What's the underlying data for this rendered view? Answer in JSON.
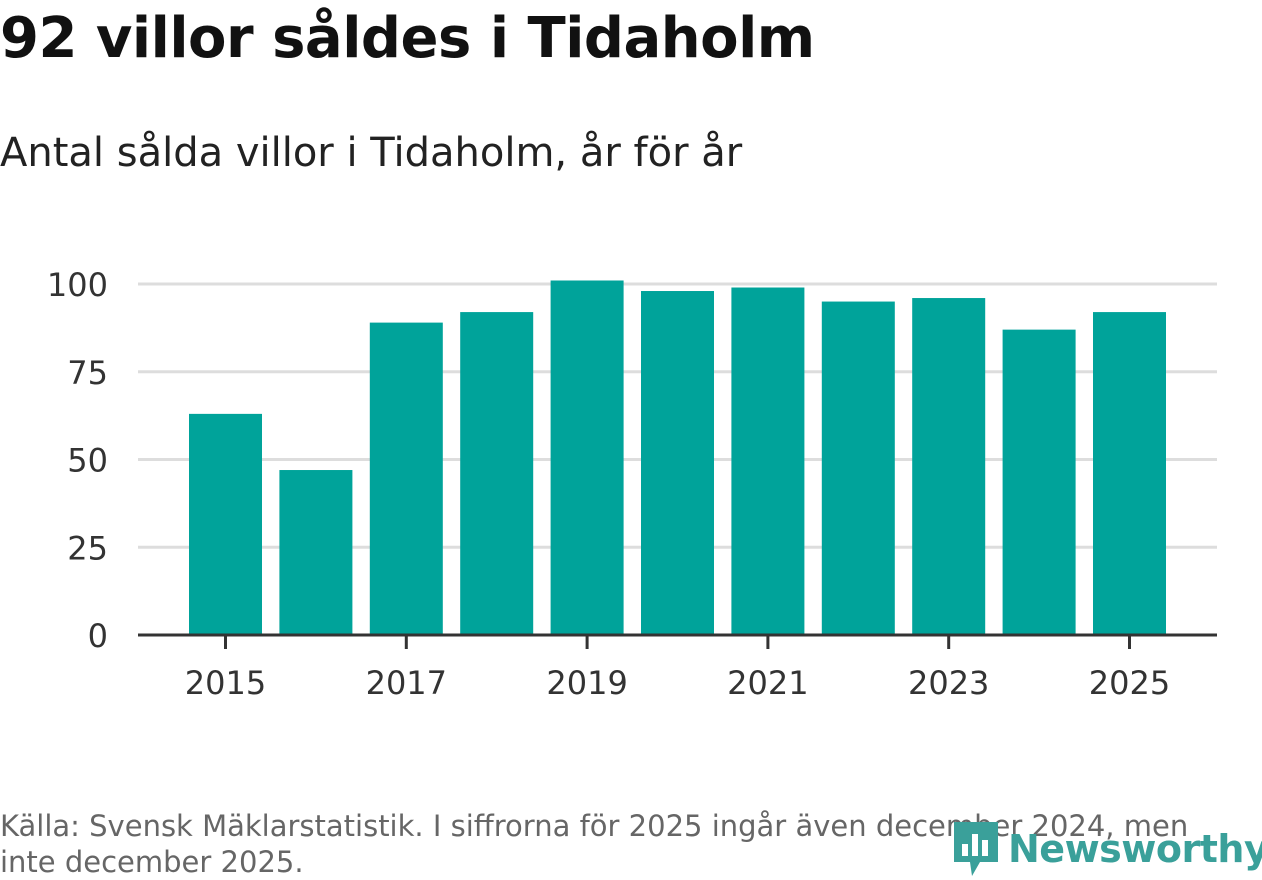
{
  "chart_data": {
    "type": "bar",
    "title": "92 villor såldes i Tidaholm",
    "subtitle": "Antal sålda villor i Tidaholm, år för år",
    "categories": [
      "2015",
      "2016",
      "2017",
      "2018",
      "2019",
      "2020",
      "2021",
      "2022",
      "2023",
      "2024",
      "2025"
    ],
    "values": [
      63,
      47,
      89,
      92,
      101,
      98,
      99,
      95,
      96,
      87,
      92
    ],
    "x_tick_labels": [
      "2015",
      "2017",
      "2019",
      "2021",
      "2023",
      "2025"
    ],
    "y_ticks": [
      0,
      25,
      50,
      75,
      100
    ],
    "ylim": [
      0,
      102
    ],
    "xlabel": "",
    "ylabel": "",
    "grid": true,
    "bar_color": "#00a39a",
    "grid_color": "#dddddd",
    "axis_color": "#333333"
  },
  "footer": {
    "source": "Källa: Svensk Mäklarstatistik. I siffrorna för 2025 ingår även december 2024, men inte december 2025.",
    "brand": "Newsworthy",
    "brand_color": "#3aa09a"
  }
}
